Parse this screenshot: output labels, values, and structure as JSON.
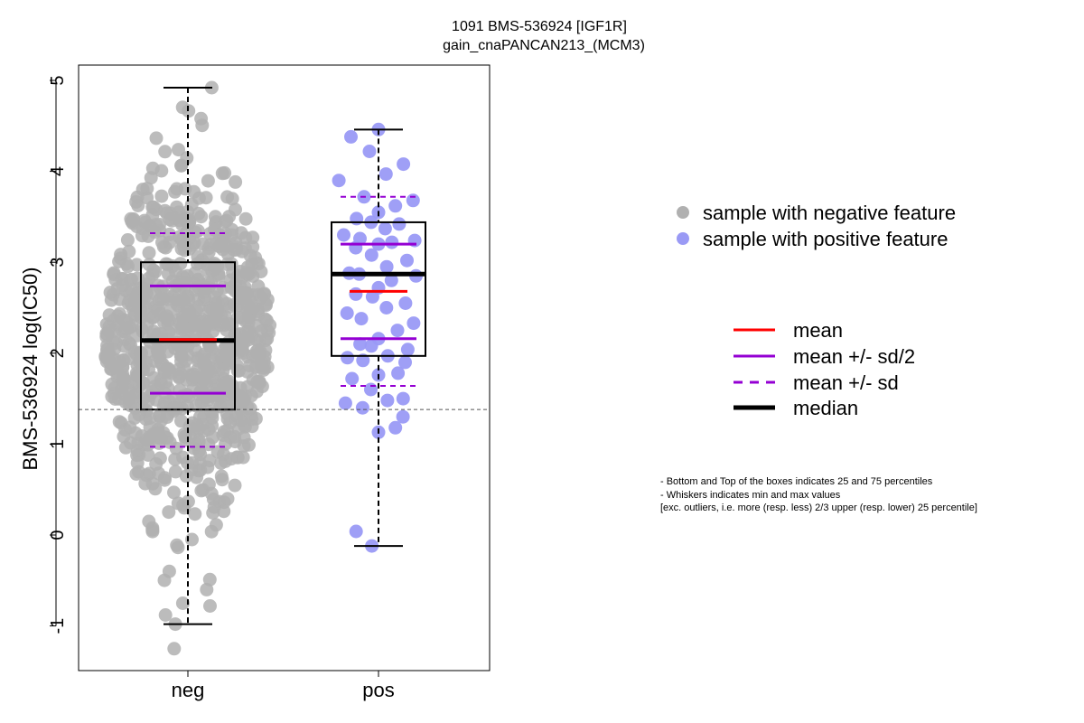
{
  "chart_data": {
    "type": "box",
    "title": "1091 BMS-536924 [IGF1R]",
    "subtitle": "gain_cnaPANCAN213_(MCM3)",
    "ylabel": "BMS-536924 log(IC50)",
    "xlabel": "",
    "ylim": [
      -1.5,
      5.15
    ],
    "yticks": [
      "-1",
      "0",
      "1",
      "2",
      "3",
      "4",
      "5"
    ],
    "reference_line_y": 1.38,
    "categories": [
      "neg",
      "pos"
    ],
    "colors": {
      "neg_points": "#b0b0b0",
      "pos_points": "#9a9af5",
      "mean": "#ff0000",
      "sd": "#9400d3",
      "median": "#000000"
    },
    "groups": [
      {
        "name": "neg",
        "min": -0.98,
        "q1": 1.38,
        "median": 2.14,
        "q3": 3.0,
        "max": 4.92,
        "mean": 2.15,
        "mean_minus_half_sd": 1.56,
        "mean_plus_half_sd": 2.74,
        "mean_minus_sd": 0.97,
        "mean_plus_sd": 3.32,
        "n_points": 900,
        "outliers": [
          -1.25
        ]
      },
      {
        "name": "pos",
        "min": -0.12,
        "q1": 1.97,
        "median": 2.87,
        "q3": 3.44,
        "max": 4.46,
        "mean": 2.68,
        "mean_minus_half_sd": 2.16,
        "mean_plus_half_sd": 3.2,
        "mean_minus_sd": 1.64,
        "mean_plus_sd": 3.72,
        "points": [
          4.46,
          4.38,
          4.22,
          4.08,
          3.97,
          3.9,
          3.72,
          3.68,
          3.62,
          3.55,
          3.48,
          3.44,
          3.42,
          3.37,
          3.3,
          3.26,
          3.24,
          3.22,
          3.2,
          3.16,
          3.08,
          3.02,
          2.95,
          2.88,
          2.87,
          2.85,
          2.8,
          2.72,
          2.65,
          2.62,
          2.55,
          2.5,
          2.44,
          2.38,
          2.33,
          2.25,
          2.16,
          2.1,
          2.08,
          2.04,
          1.97,
          1.95,
          1.92,
          1.9,
          1.78,
          1.76,
          1.72,
          1.6,
          1.5,
          1.48,
          1.45,
          1.4,
          1.3,
          1.18,
          1.13,
          0.04,
          -0.12
        ]
      }
    ],
    "legend": {
      "points": [
        {
          "label": "sample with negative feature",
          "color": "#b0b0b0"
        },
        {
          "label": "sample with positive feature",
          "color": "#9a9af5"
        }
      ],
      "lines": [
        {
          "label": "mean",
          "color": "#ff0000",
          "style": "solid"
        },
        {
          "label": "mean +/- sd/2",
          "color": "#9400d3",
          "style": "solid"
        },
        {
          "label": "mean +/- sd",
          "color": "#9400d3",
          "style": "dashed"
        },
        {
          "label": "median",
          "color": "#000000",
          "style": "solid-thick"
        }
      ]
    },
    "notes": [
      "- Bottom and Top of the boxes indicates 25 and 75 percentiles",
      "- Whiskers indicates min and max values",
      "[exc. outliers, i.e. more (resp. less) 2/3 upper (resp. lower) 25 percentile]"
    ]
  }
}
